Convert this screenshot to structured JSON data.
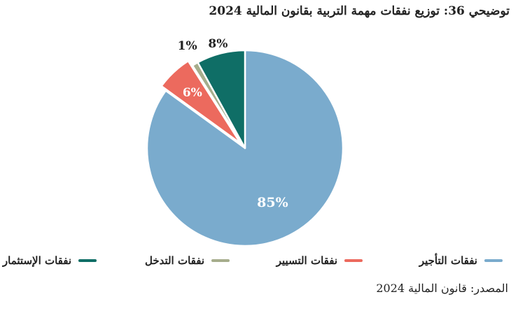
{
  "title": "توضيحي 36: توزيع نفقات مهمة التربية بقانون المالية 2024",
  "source": "المصدر: قانون المالية 2024",
  "chart_data": {
    "type": "pie",
    "title": "توزيع نفقات مهمة التربية بقانون المالية 2024",
    "unit": "%",
    "legend_position": "bottom",
    "series": [
      {
        "name": "نفقات التأجير",
        "value": 85,
        "label": "85%",
        "color": "#7aabcd"
      },
      {
        "name": "نفقات التسيير",
        "value": 6,
        "label": "6%",
        "color": "#ec6a5e"
      },
      {
        "name": "نفقات التدخل",
        "value": 1,
        "label": "1%",
        "color": "#a6ad8c"
      },
      {
        "name": "نفقات الإستثمار",
        "value": 8,
        "label": "8%",
        "color": "#0f6e66"
      }
    ]
  }
}
